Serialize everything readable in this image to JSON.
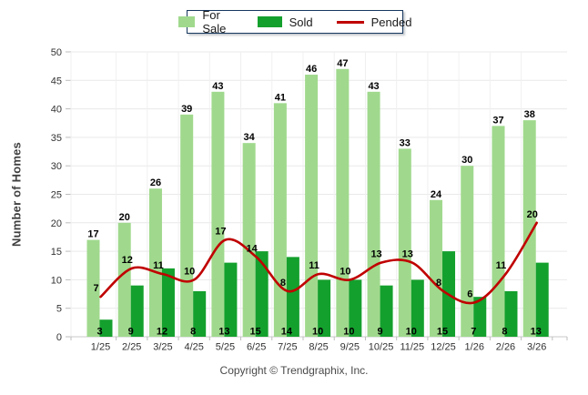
{
  "legend": {
    "items": [
      {
        "label": "For Sale",
        "color": "#A0D98D",
        "swatch": "box"
      },
      {
        "label": "Sold",
        "color": "#14A02D",
        "swatch": "box"
      },
      {
        "label": "Pended",
        "color": "#C00000",
        "swatch": "line"
      }
    ]
  },
  "footer": {
    "copyright": "Copyright © Trendgraphix, Inc."
  },
  "axes": {
    "y_ticks": [
      0,
      5,
      10,
      15,
      20,
      25,
      30,
      35,
      40,
      45,
      50
    ]
  },
  "chart_data": {
    "type": "bar",
    "title": "",
    "xlabel": "",
    "ylabel": "Number of Homes",
    "ylim": [
      0,
      50
    ],
    "ytick_step": 5,
    "grid": true,
    "legend_position": "top",
    "categories": [
      "1/25",
      "2/25",
      "3/25",
      "4/25",
      "5/25",
      "6/25",
      "7/25",
      "8/25",
      "9/25",
      "10/25",
      "11/25",
      "12/25",
      "1/26",
      "2/26",
      "3/26"
    ],
    "series": [
      {
        "name": "For Sale",
        "type": "bar",
        "color": "#A0D98D",
        "values": [
          17,
          20,
          26,
          39,
          43,
          34,
          41,
          46,
          47,
          43,
          33,
          24,
          30,
          37,
          38
        ]
      },
      {
        "name": "Sold",
        "type": "bar",
        "color": "#14A02D",
        "values": [
          3,
          9,
          12,
          8,
          13,
          15,
          14,
          10,
          10,
          9,
          10,
          15,
          7,
          8,
          13
        ]
      },
      {
        "name": "Pended",
        "type": "line",
        "color": "#C00000",
        "values": [
          7,
          12,
          11,
          10,
          17,
          14,
          8,
          11,
          10,
          13,
          13,
          8,
          6,
          11,
          20
        ]
      }
    ],
    "colors": {
      "gridline": "#E9E9E9",
      "axis_line": "#C9C9C9",
      "tick": "#BDBDBD",
      "tick_label": "#333333",
      "value_label": "#000000"
    }
  }
}
